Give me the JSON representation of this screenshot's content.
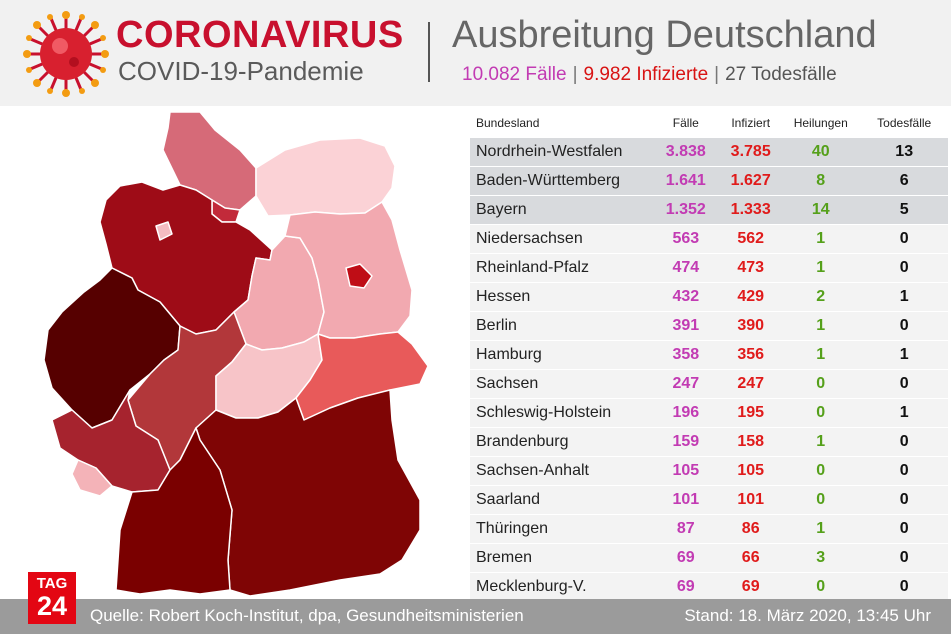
{
  "header": {
    "brand_title": "CORONAVIRUS",
    "brand_subtitle": "COVID-19-Pandemie",
    "title": "Ausbreitung Deutschland",
    "summary": {
      "cases": "10.082 Fälle",
      "infected": "9.982 Infizierte",
      "deaths": "27 Todesfälle"
    }
  },
  "colors": {
    "brand_red": "#c8102e",
    "cases": "#c23bb3",
    "infected": "#e01b1b",
    "recovered": "#55a01a",
    "deaths": "#111111",
    "tag24": "#e30613",
    "footer_bg": "#9b9b9b"
  },
  "chart_data": {
    "type": "table",
    "columns": [
      "Bundesland",
      "Fälle",
      "Infiziert",
      "Heilungen",
      "Todesfälle"
    ],
    "rows": [
      {
        "land": "Nordrhein-Westfalen",
        "faelle": "3.838",
        "infiziert": "3.785",
        "heilungen": "40",
        "tote": "13"
      },
      {
        "land": "Baden-Württemberg",
        "faelle": "1.641",
        "infiziert": "1.627",
        "heilungen": "8",
        "tote": "6"
      },
      {
        "land": "Bayern",
        "faelle": "1.352",
        "infiziert": "1.333",
        "heilungen": "14",
        "tote": "5"
      },
      {
        "land": "Niedersachsen",
        "faelle": "563",
        "infiziert": "562",
        "heilungen": "1",
        "tote": "0"
      },
      {
        "land": "Rheinland-Pfalz",
        "faelle": "474",
        "infiziert": "473",
        "heilungen": "1",
        "tote": "0"
      },
      {
        "land": "Hessen",
        "faelle": "432",
        "infiziert": "429",
        "heilungen": "2",
        "tote": "1"
      },
      {
        "land": "Berlin",
        "faelle": "391",
        "infiziert": "390",
        "heilungen": "1",
        "tote": "0"
      },
      {
        "land": "Hamburg",
        "faelle": "358",
        "infiziert": "356",
        "heilungen": "1",
        "tote": "1"
      },
      {
        "land": "Sachsen",
        "faelle": "247",
        "infiziert": "247",
        "heilungen": "0",
        "tote": "0"
      },
      {
        "land": "Schleswig-Holstein",
        "faelle": "196",
        "infiziert": "195",
        "heilungen": "0",
        "tote": "1"
      },
      {
        "land": "Brandenburg",
        "faelle": "159",
        "infiziert": "158",
        "heilungen": "1",
        "tote": "0"
      },
      {
        "land": "Sachsen-Anhalt",
        "faelle": "105",
        "infiziert": "105",
        "heilungen": "0",
        "tote": "0"
      },
      {
        "land": "Saarland",
        "faelle": "101",
        "infiziert": "101",
        "heilungen": "0",
        "tote": "0"
      },
      {
        "land": "Thüringen",
        "faelle": "87",
        "infiziert": "86",
        "heilungen": "1",
        "tote": "0"
      },
      {
        "land": "Bremen",
        "faelle": "69",
        "infiziert": "66",
        "heilungen": "3",
        "tote": "0"
      },
      {
        "land": "Mecklenburg-V.",
        "faelle": "69",
        "infiziert": "69",
        "heilungen": "0",
        "tote": "0"
      }
    ]
  },
  "map": {
    "state_colors": {
      "nordrhein-westfalen": "#560000",
      "baden-wuerttemberg": "#7a0000",
      "bayern": "#7f0505",
      "niedersachsen": "#9e0c17",
      "rheinland-pfalz": "#a6232e",
      "hessen": "#b2373a",
      "berlin": "#bf0d16",
      "hamburg": "#c22a3a",
      "sachsen": "#e85a5a",
      "schleswig-holstein": "#d66a78",
      "brandenburg": "#f2a9b0",
      "sachsen-anhalt": "#f2a9b0",
      "saarland": "#f4b3b8",
      "thueringen": "#f7c4c8",
      "bremen": "#f4bcc2",
      "mecklenburg-vorpommern": "#fbd2d6"
    }
  },
  "footer": {
    "logo_top": "TAG",
    "logo_bottom": "24",
    "source": "Quelle: Robert Koch-Institut, dpa, Gesundheitsministerien",
    "stand": "Stand: 18. März 2020, 13:45 Uhr"
  }
}
